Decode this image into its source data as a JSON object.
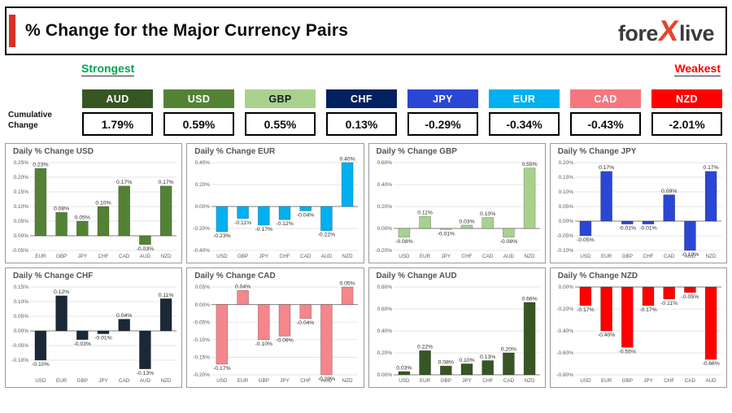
{
  "header": {
    "title": "% Change for the Major Currency Pairs",
    "logo": {
      "fore": "fore",
      "x": "X",
      "live": "live"
    }
  },
  "labels": {
    "strongest": "Strongest",
    "weakest": "Weakest",
    "cumulative_line1": "Cumulative",
    "cumulative_line2": "Change"
  },
  "colors": {
    "strongest": "#00a551",
    "weakest": "#ff0000",
    "accent_red": "#d93025",
    "logo_x": "#e8432d"
  },
  "cumulative_strip": [
    {
      "currency": "AUD",
      "value": "1.79%",
      "bg": "#375623",
      "fg": "#ffffff"
    },
    {
      "currency": "USD",
      "value": "0.59%",
      "bg": "#548235",
      "fg": "#ffffff"
    },
    {
      "currency": "GBP",
      "value": "0.55%",
      "bg": "#a9d18e",
      "fg": "#1a1a1a"
    },
    {
      "currency": "CHF",
      "value": "0.13%",
      "bg": "#002060",
      "fg": "#ffffff"
    },
    {
      "currency": "JPY",
      "value": "-0.29%",
      "bg": "#2a46d4",
      "fg": "#ffffff"
    },
    {
      "currency": "EUR",
      "value": "-0.34%",
      "bg": "#00b0f0",
      "fg": "#ffffff"
    },
    {
      "currency": "CAD",
      "value": "-0.43%",
      "bg": "#f4777f",
      "fg": "#ffffff"
    },
    {
      "currency": "NZD",
      "value": "-2.01%",
      "bg": "#ff0000",
      "fg": "#ffffff"
    }
  ],
  "chart_data": [
    {
      "id": "usd",
      "type": "bar",
      "title": "Daily % Change USD",
      "color": "#548235",
      "categories": [
        "EUR",
        "GBP",
        "JPY",
        "CHF",
        "CAD",
        "AUD",
        "NZD"
      ],
      "values": [
        0.23,
        0.08,
        0.05,
        0.1,
        0.17,
        -0.03,
        0.17
      ],
      "ylim": [
        -0.05,
        0.25
      ],
      "yticks": [
        0.25,
        0.2,
        0.15,
        0.1,
        0.05,
        0.0,
        -0.05
      ]
    },
    {
      "id": "eur",
      "type": "bar",
      "title": "Daily % Change EUR",
      "color": "#00b0f0",
      "categories": [
        "USD",
        "GBP",
        "JPY",
        "CHF",
        "CAD",
        "AUD",
        "NZD"
      ],
      "values": [
        -0.23,
        -0.11,
        -0.17,
        -0.12,
        -0.04,
        -0.22,
        0.4
      ],
      "ylim": [
        -0.4,
        0.4
      ],
      "yticks": [
        0.4,
        0.2,
        0.0,
        -0.2,
        -0.4
      ]
    },
    {
      "id": "gbp",
      "type": "bar",
      "title": "Daily % Change GBP",
      "color": "#a9d18e",
      "categories": [
        "USD",
        "EUR",
        "JPY",
        "CHF",
        "CAD",
        "AUD",
        "NZD"
      ],
      "values": [
        -0.08,
        0.11,
        -0.01,
        0.03,
        0.1,
        -0.08,
        0.55
      ],
      "ylim": [
        -0.2,
        0.6
      ],
      "yticks": [
        0.6,
        0.4,
        0.2,
        0.0,
        -0.2
      ]
    },
    {
      "id": "jpy",
      "type": "bar",
      "title": "Daily % Change JPY",
      "color": "#2a46d4",
      "categories": [
        "USD",
        "EUR",
        "GBP",
        "CHF",
        "CAD",
        "AUD",
        "NZD"
      ],
      "values": [
        -0.05,
        0.17,
        -0.01,
        -0.01,
        0.09,
        -0.1,
        0.17
      ],
      "ylim": [
        -0.1,
        0.2
      ],
      "yticks": [
        0.2,
        0.15,
        0.1,
        0.05,
        0.0,
        -0.05,
        -0.1
      ]
    },
    {
      "id": "chf",
      "type": "bar",
      "title": "Daily % Change CHF",
      "color": "#1b2838",
      "categories": [
        "USD",
        "EUR",
        "GBP",
        "JPY",
        "CAD",
        "AUD",
        "NZD"
      ],
      "values": [
        -0.1,
        0.12,
        -0.03,
        -0.01,
        0.04,
        -0.13,
        0.11
      ],
      "ylim": [
        -0.15,
        0.15
      ],
      "yticks": [
        0.15,
        0.1,
        0.05,
        0.0,
        -0.05,
        -0.1
      ]
    },
    {
      "id": "cad",
      "type": "bar",
      "title": "Daily % Change CAD",
      "color": "#f4868c",
      "categories": [
        "USD",
        "EUR",
        "GBP",
        "JPY",
        "CHF",
        "AUD",
        "NZD"
      ],
      "values": [
        -0.17,
        0.04,
        -0.1,
        -0.09,
        -0.04,
        -0.2,
        0.05
      ],
      "ylim": [
        -0.2,
        0.05
      ],
      "yticks": [
        0.05,
        0.0,
        -0.05,
        -0.1,
        -0.15,
        -0.2
      ]
    },
    {
      "id": "aud",
      "type": "bar",
      "title": "Daily % Change AUD",
      "color": "#375623",
      "categories": [
        "USD",
        "EUR",
        "GBP",
        "JPY",
        "CHF",
        "CAD",
        "NZD"
      ],
      "values": [
        0.03,
        0.22,
        0.08,
        0.1,
        0.13,
        0.2,
        0.66
      ],
      "ylim": [
        0.0,
        0.8
      ],
      "yticks": [
        0.8,
        0.6,
        0.4,
        0.2,
        0.0
      ]
    },
    {
      "id": "nzd",
      "type": "bar",
      "title": "Daily % Change NZD",
      "color": "#ff0000",
      "categories": [
        "USD",
        "EUR",
        "GBP",
        "JPY",
        "CHF",
        "CAD",
        "AUD"
      ],
      "values": [
        -0.17,
        -0.4,
        -0.55,
        -0.17,
        -0.11,
        -0.05,
        -0.66
      ],
      "ylim": [
        -0.8,
        0.0
      ],
      "yticks": [
        0.0,
        -0.2,
        -0.4,
        -0.6,
        -0.8
      ]
    }
  ]
}
